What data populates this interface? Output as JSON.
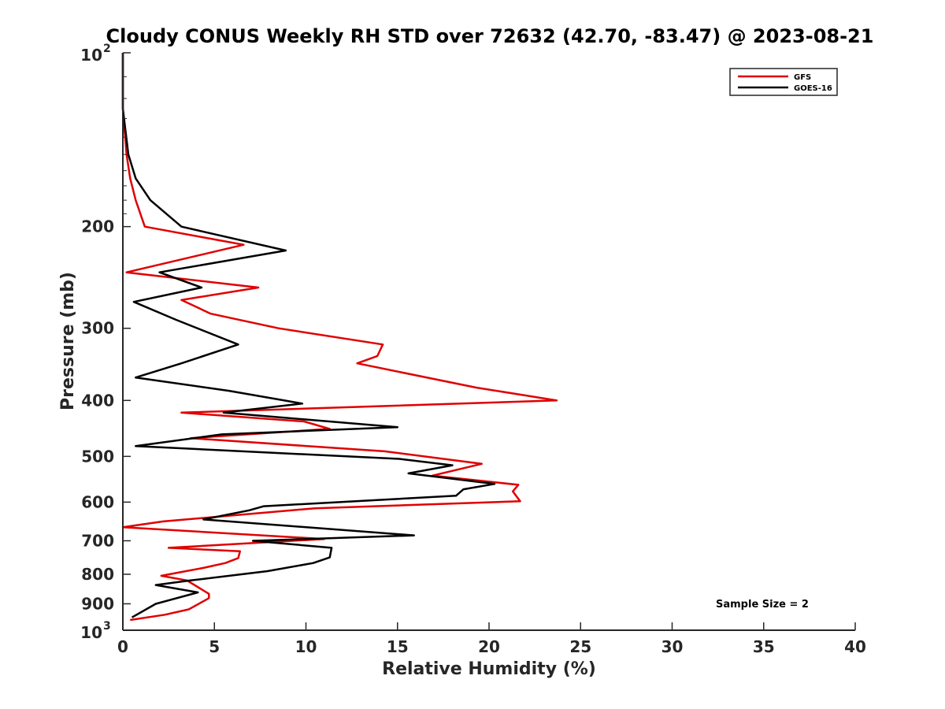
{
  "chart_data": {
    "type": "line",
    "title": "Cloudy CONUS Weekly RH STD over 72632 (42.70, -83.47) @ 2023-08-21",
    "xlabel": "Relative Humidity (%)",
    "ylabel": "Pressure (mb)",
    "xlim": [
      0,
      40
    ],
    "ylim": [
      100,
      1000
    ],
    "yscale": "log",
    "y_reversed": true,
    "x_ticks": [
      "0",
      "5",
      "10",
      "15",
      "20",
      "25",
      "30",
      "35",
      "40"
    ],
    "y_ticks": [
      {
        "value": 100,
        "base": "10",
        "exp": "2"
      },
      {
        "value": 200,
        "label": "200"
      },
      {
        "value": 300,
        "label": "300"
      },
      {
        "value": 400,
        "label": "400"
      },
      {
        "value": 500,
        "label": "500"
      },
      {
        "value": 600,
        "label": "600"
      },
      {
        "value": 700,
        "label": "700"
      },
      {
        "value": 800,
        "label": "800"
      },
      {
        "value": 900,
        "label": "900"
      },
      {
        "value": 1000,
        "base": "10",
        "exp": "3"
      }
    ],
    "legend_position": "top-right",
    "series": [
      {
        "name": "GFS",
        "color": "#e00000",
        "points": [
          [
            0,
            100
          ],
          [
            0,
            125
          ],
          [
            0.2,
            150
          ],
          [
            0.4,
            165
          ],
          [
            0.7,
            180
          ],
          [
            1.2,
            200
          ],
          [
            6.6,
            215
          ],
          [
            0.2,
            240
          ],
          [
            7.4,
            255
          ],
          [
            3.2,
            268
          ],
          [
            4.8,
            283
          ],
          [
            8.5,
            300
          ],
          [
            14.2,
            320
          ],
          [
            13.9,
            335
          ],
          [
            12.8,
            345
          ],
          [
            19.3,
            380
          ],
          [
            23.7,
            400
          ],
          [
            3.2,
            420
          ],
          [
            9.9,
            435
          ],
          [
            11.3,
            448
          ],
          [
            3.7,
            465
          ],
          [
            14.3,
            490
          ],
          [
            19.6,
            515
          ],
          [
            16.9,
            540
          ],
          [
            21.6,
            560
          ],
          [
            21.3,
            575
          ],
          [
            21.7,
            598
          ],
          [
            10.5,
            615
          ],
          [
            2.2,
            648
          ],
          [
            0,
            663
          ],
          [
            11.0,
            695
          ],
          [
            2.5,
            720
          ],
          [
            6.4,
            730
          ],
          [
            6.3,
            750
          ],
          [
            5.6,
            765
          ],
          [
            4.4,
            780
          ],
          [
            2.1,
            805
          ],
          [
            3.5,
            820
          ],
          [
            4.7,
            865
          ],
          [
            4.7,
            880
          ],
          [
            3.6,
            920
          ],
          [
            2.3,
            940
          ],
          [
            0.4,
            960
          ]
        ]
      },
      {
        "name": "GOES-16",
        "color": "#000000",
        "points": [
          [
            0,
            100
          ],
          [
            0,
            125
          ],
          [
            0.3,
            150
          ],
          [
            0.7,
            165
          ],
          [
            1.5,
            180
          ],
          [
            3.2,
            200
          ],
          [
            8.9,
            220
          ],
          [
            2.0,
            240
          ],
          [
            4.3,
            255
          ],
          [
            0.6,
            270
          ],
          [
            2.9,
            290
          ],
          [
            6.3,
            320
          ],
          [
            3.2,
            345
          ],
          [
            0.7,
            365
          ],
          [
            5.8,
            385
          ],
          [
            9.8,
            405
          ],
          [
            5.5,
            420
          ],
          [
            15.0,
            445
          ],
          [
            5.4,
            458
          ],
          [
            0.7,
            480
          ],
          [
            15.1,
            505
          ],
          [
            18.0,
            518
          ],
          [
            15.6,
            535
          ],
          [
            20.3,
            558
          ],
          [
            18.6,
            570
          ],
          [
            18.2,
            585
          ],
          [
            7.7,
            610
          ],
          [
            6.9,
            620
          ],
          [
            4.4,
            643
          ],
          [
            15.9,
            685
          ],
          [
            7.1,
            700
          ],
          [
            11.4,
            720
          ],
          [
            11.3,
            748
          ],
          [
            10.4,
            765
          ],
          [
            7.9,
            790
          ],
          [
            3.7,
            820
          ],
          [
            1.8,
            835
          ],
          [
            4.1,
            860
          ],
          [
            1.8,
            900
          ],
          [
            0.5,
            950
          ]
        ]
      }
    ],
    "annotation": "Sample Size = 2"
  }
}
